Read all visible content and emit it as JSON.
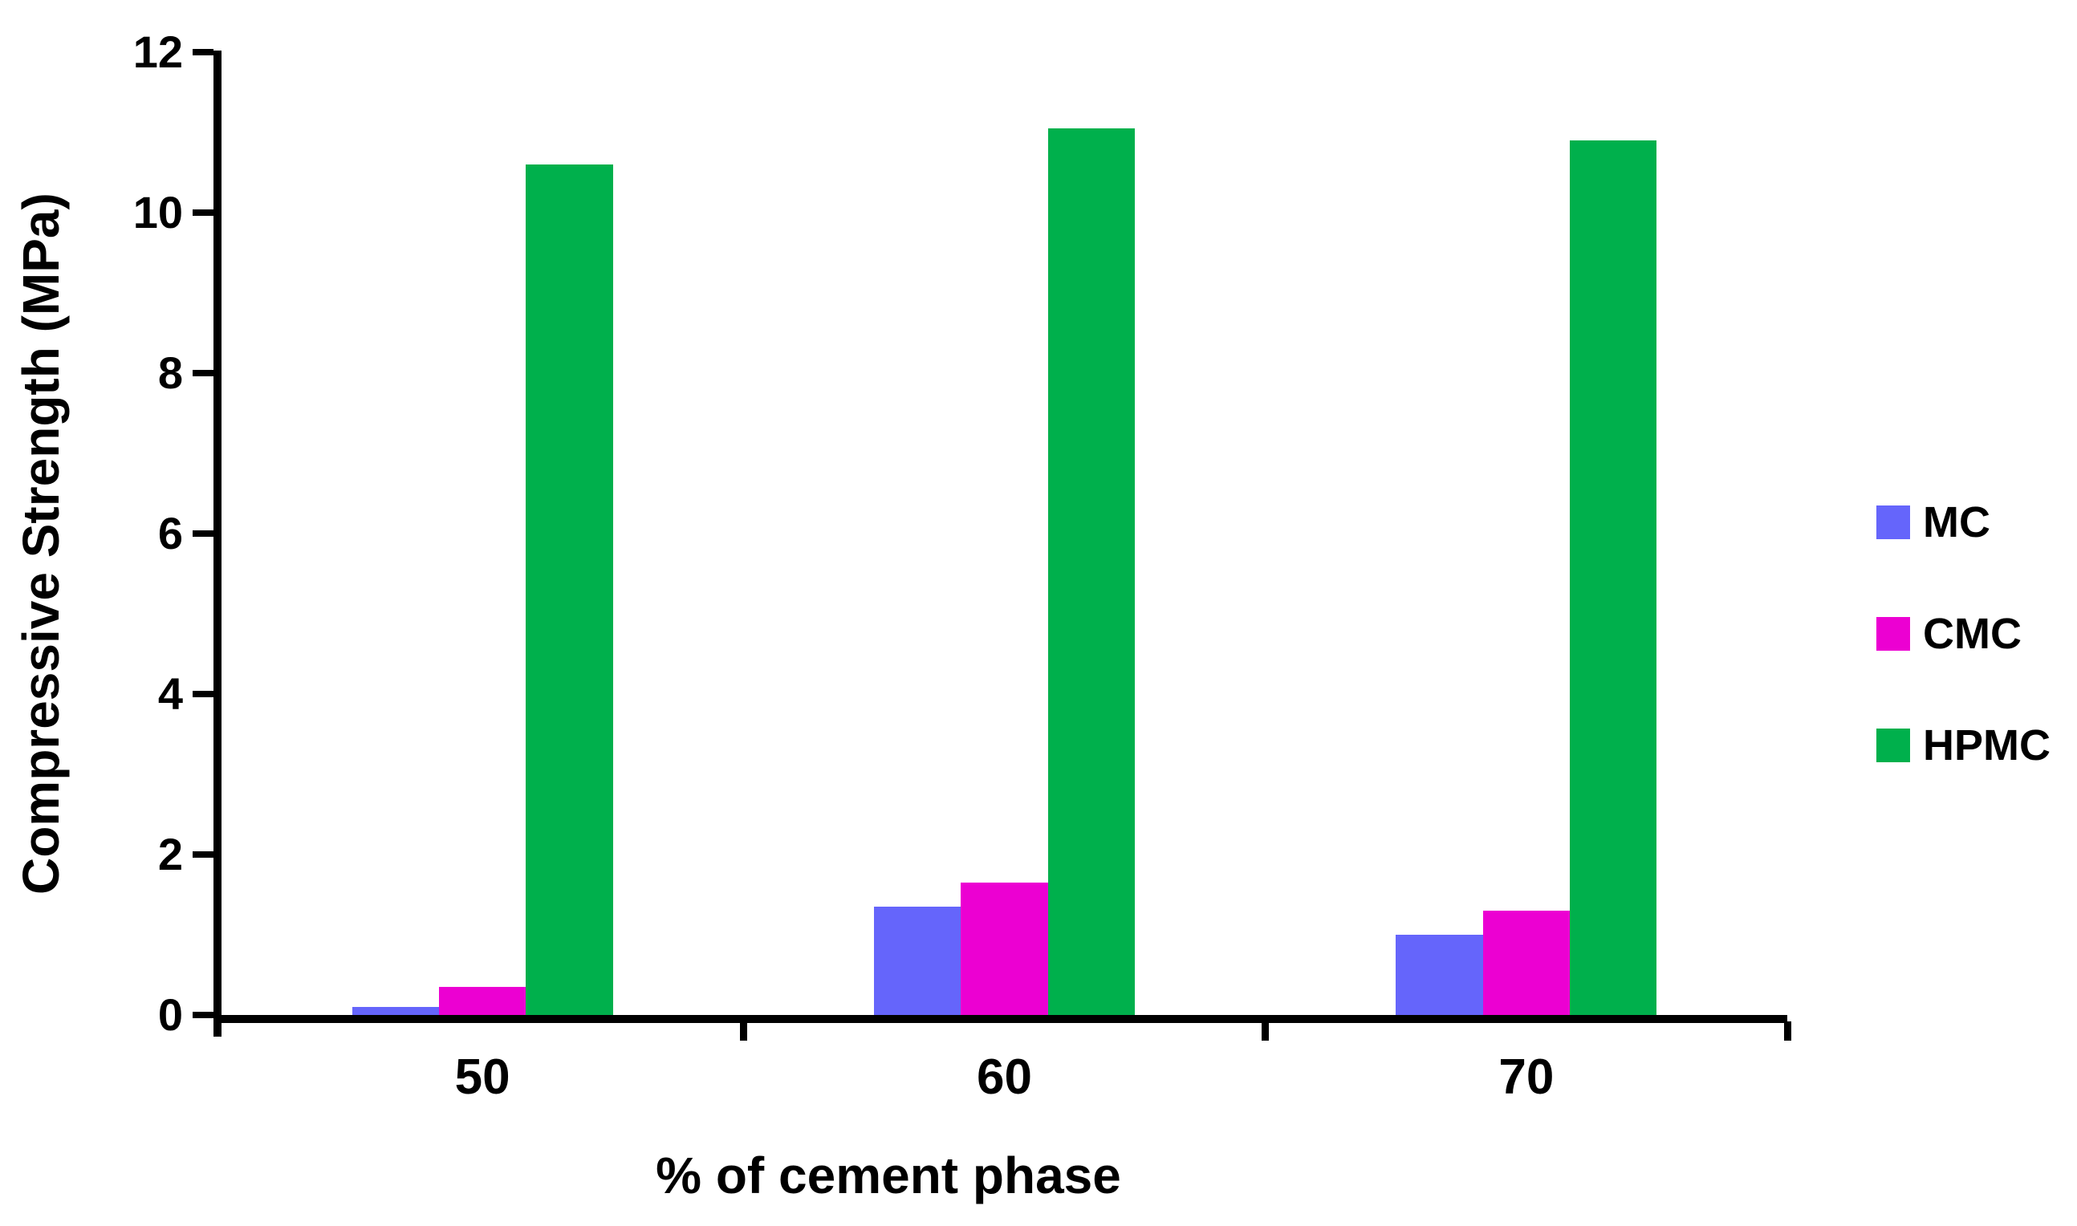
{
  "colors": {
    "axis": "#000000",
    "text": "#000000",
    "background": "#ffffff",
    "mc": "#6565FB",
    "cmc": "#EC00D2",
    "hpmc": "#00B04C"
  },
  "chart_data": {
    "type": "bar",
    "title": "",
    "xlabel": "% of cement phase",
    "ylabel": "Compressive Strength (MPa)",
    "categories": [
      "50",
      "60",
      "70"
    ],
    "series": [
      {
        "name": "MC",
        "color": "#6565FB",
        "values": [
          0.1,
          1.35,
          1.0
        ]
      },
      {
        "name": "CMC",
        "color": "#EC00D2",
        "values": [
          0.35,
          1.65,
          1.3
        ]
      },
      {
        "name": "HPMC",
        "color": "#00B04C",
        "values": [
          10.6,
          11.05,
          10.9
        ]
      }
    ],
    "ylim": [
      0,
      12
    ],
    "yticks": [
      0,
      2,
      4,
      6,
      8,
      10,
      12
    ],
    "grid": false,
    "legend_position": "right"
  }
}
